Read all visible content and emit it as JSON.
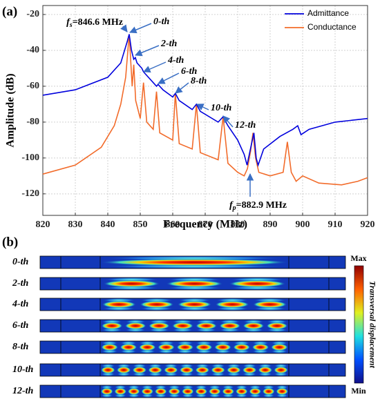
{
  "panel_labels": [
    "(a)",
    "(b)"
  ],
  "chart_data": {
    "type": "line",
    "xlabel": "Frequency (MHz)",
    "ylabel": "Amplitude (dB)",
    "xlim": [
      820,
      920
    ],
    "xticks": [
      820,
      830,
      840,
      850,
      860,
      870,
      880,
      890,
      900,
      910,
      920
    ],
    "ylim": [
      -132,
      -15
    ],
    "yticks": [
      -120,
      -100,
      -80,
      -60,
      -40,
      -20
    ],
    "grid": true,
    "legend": "upper right",
    "series": [
      {
        "name": "Admittance",
        "color": "#0000dd",
        "x": [
          820,
          830,
          840,
          844,
          846,
          846.6,
          847.3,
          848,
          848.5,
          849,
          850.5,
          851,
          854,
          855,
          855.5,
          857,
          860,
          860.8,
          862,
          866,
          867.3,
          868.5,
          874,
          875.5,
          877,
          880,
          882,
          882.9,
          883.8,
          884.5,
          885,
          885.7,
          886.3,
          888,
          893,
          897,
          898.5,
          899.5,
          902,
          910,
          920
        ],
        "values": [
          -65,
          -62,
          -55,
          -47,
          -35,
          -31,
          -40,
          -45,
          -44,
          -47,
          -50,
          -52,
          -58,
          -60,
          -59,
          -62,
          -66,
          -64,
          -68,
          -73,
          -70,
          -74,
          -80,
          -77,
          -82,
          -90,
          -98,
          -104,
          -96,
          -90,
          -86,
          -100,
          -104,
          -95,
          -88,
          -84,
          -82,
          -87,
          -84,
          -80,
          -78
        ]
      },
      {
        "name": "Conductance",
        "color": "#f26b2a",
        "x": [
          820,
          830,
          838,
          842,
          844,
          845.5,
          846.6,
          847.5,
          848,
          848.6,
          850,
          851,
          852,
          854,
          855,
          856,
          860,
          860.8,
          862,
          866,
          867.3,
          868.5,
          874,
          875.5,
          877,
          880,
          882,
          883,
          884,
          884.7,
          885.5,
          886.5,
          890,
          894,
          895.3,
          896.5,
          898,
          900,
          905,
          912,
          917,
          920
        ],
        "values": [
          -109,
          -104,
          -94,
          -82,
          -70,
          -55,
          -31,
          -60,
          -48,
          -68,
          -78,
          -58,
          -80,
          -84,
          -63,
          -86,
          -90,
          -64,
          -92,
          -95,
          -70,
          -97,
          -101,
          -77,
          -103,
          -108,
          -110,
          -106,
          -96,
          -86,
          -100,
          -108,
          -110,
          -108,
          -91,
          -108,
          -113,
          -110,
          -114,
          -115,
          -113,
          -111
        ]
      }
    ],
    "annotations": [
      "0-th",
      "2-th",
      "4-th",
      "6-th",
      "8-th",
      "10-th",
      "12-th"
    ],
    "fs_label": {
      "symbol": "f",
      "sub": "s",
      "value": "=846.6 MHz"
    },
    "fp_label": {
      "symbol": "f",
      "sub": "p",
      "value": "=882.9 MHz"
    }
  },
  "modes": {
    "labels": [
      "0-th",
      "2-th",
      "4-th",
      "6-th",
      "8-th",
      "10-th",
      "12-th"
    ],
    "colorbar": {
      "max": "Max",
      "min": "Min",
      "title": "Transversal displacement"
    }
  }
}
